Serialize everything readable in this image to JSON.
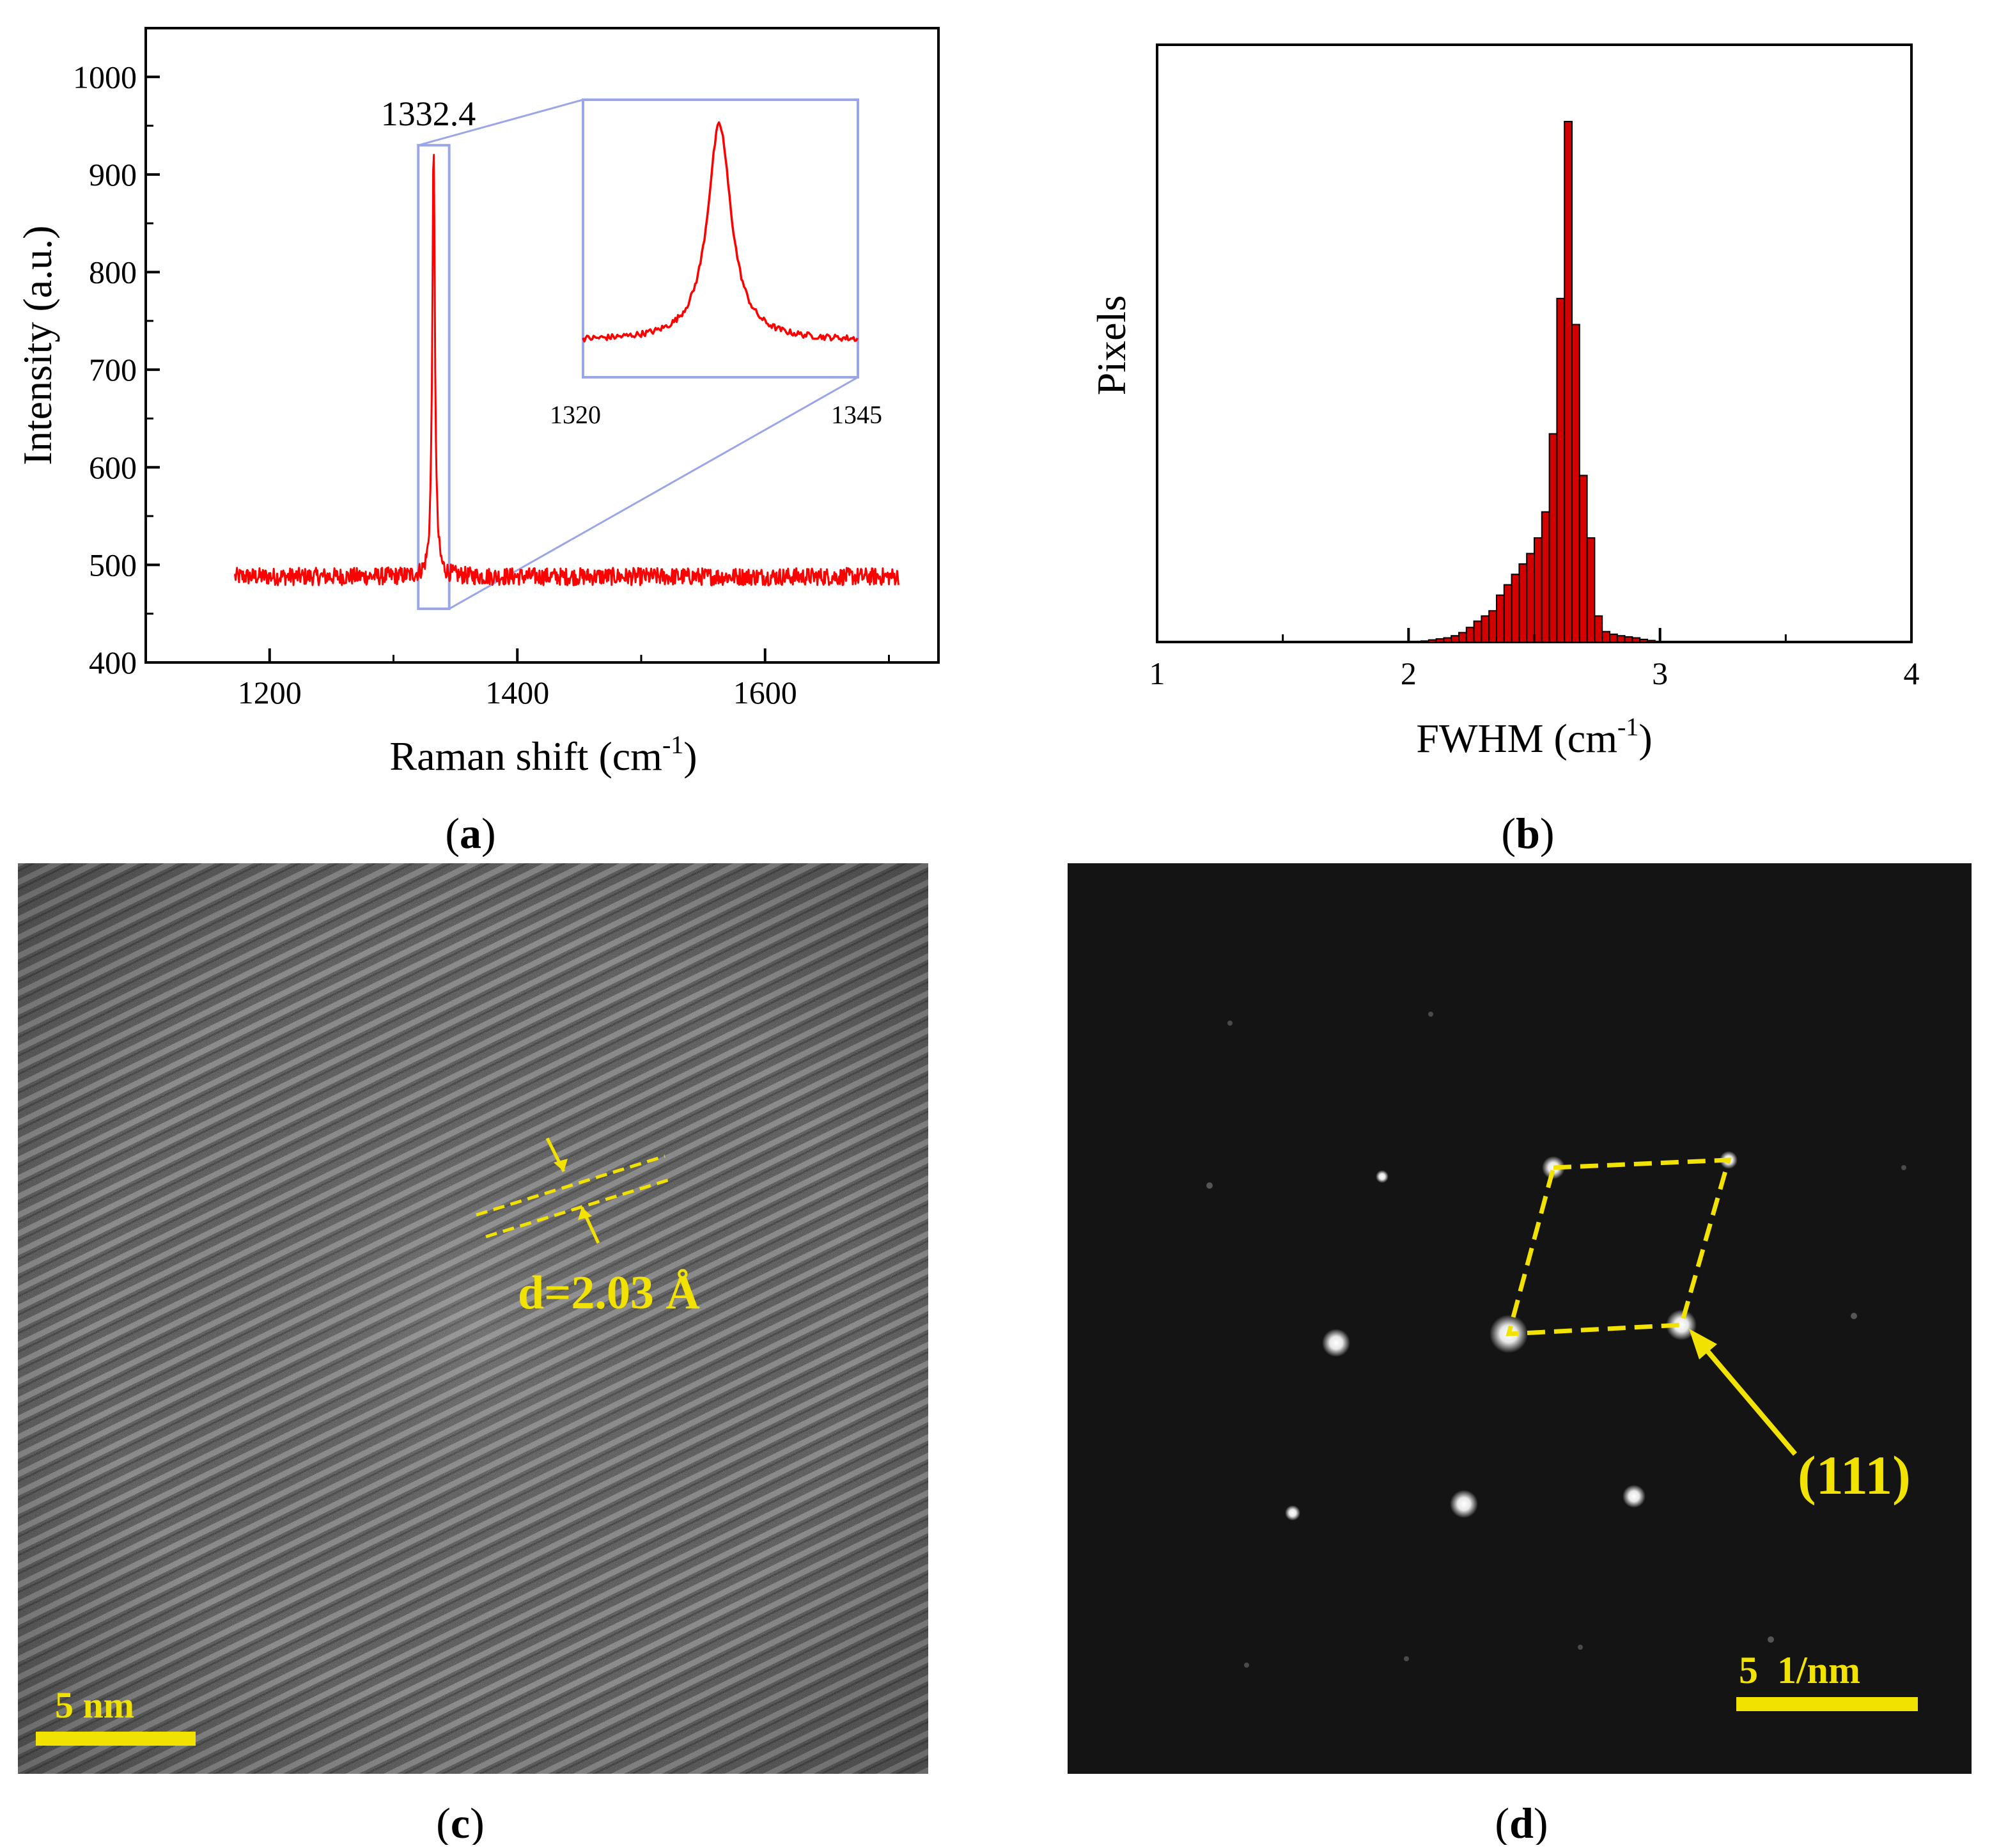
{
  "chart_data": [
    {
      "type": "line",
      "panel": "a",
      "ylabel": "Intensity (a.u.)",
      "xlabel_main": "Raman shift (cm",
      "xlabel_sup": "-1",
      "xlabel_end": ")",
      "xlim": [
        1100,
        1740
      ],
      "ylim": [
        400,
        1050
      ],
      "xticks": [
        "1200",
        "1400",
        "1600"
      ],
      "xtick_values": [
        1200,
        1400,
        1600
      ],
      "yticks": [
        "400",
        "500",
        "600",
        "700",
        "800",
        "900",
        "1000"
      ],
      "ytick_values": [
        400,
        500,
        600,
        700,
        800,
        900,
        1000
      ],
      "peak_label": "1332.4",
      "series": [
        {
          "name": "Raman spectrum",
          "x_range": [
            1172,
            1708
          ],
          "baseline": 488,
          "noise": 9,
          "peak_center": 1332.4,
          "peak_height": 925,
          "peak_hwhm": 1.3
        }
      ],
      "inset": {
        "xlim": [
          1320,
          1345
        ],
        "xtick_labels": [
          "1320",
          "1345"
        ],
        "zoom_box_x": [
          1320,
          1345
        ],
        "zoom_box_y": [
          455,
          930
        ]
      }
    },
    {
      "type": "bar",
      "panel": "b",
      "ylabel": "Pixels",
      "xlabel_main": "FWHM (cm",
      "xlabel_sup": "-1",
      "xlabel_end": ")",
      "xlim": [
        1,
        4
      ],
      "xticks": [
        "1",
        "2",
        "3",
        "4"
      ],
      "xtick_values": [
        1,
        2,
        3,
        4
      ],
      "bin_width": 0.03,
      "bin_start": 2.05,
      "values": [
        0.002,
        0.004,
        0.006,
        0.008,
        0.012,
        0.018,
        0.028,
        0.04,
        0.05,
        0.06,
        0.09,
        0.11,
        0.13,
        0.15,
        0.17,
        0.2,
        0.25,
        0.4,
        0.66,
        1.0,
        0.61,
        0.32,
        0.2,
        0.05,
        0.02,
        0.015,
        0.012,
        0.01,
        0.008,
        0.005,
        0.003
      ],
      "ymax_relative": 1.0
    }
  ],
  "captions": {
    "a": "a",
    "b": "b",
    "c": "c",
    "d": "d"
  },
  "panel_c": {
    "d_spacing": "d=2.03 Å",
    "scalebar": "5 nm"
  },
  "panel_d": {
    "plane": "(111)",
    "scalebar": "5  1/nm"
  },
  "colors": {
    "spectrum": "#ff0000",
    "zoom_box": "#9aa6e8",
    "bar_fill": "#d40000",
    "annotation": "#f2e200"
  }
}
